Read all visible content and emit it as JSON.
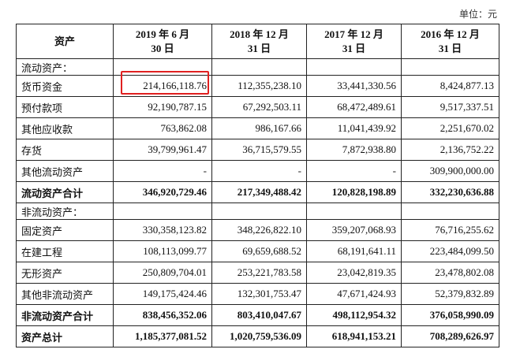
{
  "unit": "单位：元",
  "table": {
    "header": [
      "资产",
      "2019 年 6 月\n30 日",
      "2018 年 12 月\n31 日",
      "2017 年 12 月\n31 日",
      "2016 年 12 月\n31 日"
    ],
    "rows": [
      [
        "流动资产："
      ],
      [
        "货币资金",
        "214,166,118.76",
        "112,355,238.10",
        "33,441,330.56",
        "8,424,877.13"
      ],
      [
        "预付款项",
        "92,190,787.15",
        "67,292,503.11",
        "68,472,489.61",
        "9,517,337.51"
      ],
      [
        "其他应收款",
        "763,862.08",
        "986,167.66",
        "11,041,439.92",
        "2,251,670.02"
      ],
      [
        "存货",
        "39,799,961.47",
        "36,715,579.55",
        "7,872,938.80",
        "2,136,752.22"
      ],
      [
        "其他流动资产",
        "-",
        "-",
        "-",
        "309,900,000.00"
      ],
      [
        "流动资产合计",
        "346,920,729.46",
        "217,349,488.42",
        "120,828,198.89",
        "332,230,636.88"
      ],
      [
        "非流动资产："
      ],
      [
        "固定资产",
        "330,358,123.82",
        "348,226,822.10",
        "359,207,068.93",
        "76,716,255.62"
      ],
      [
        "在建工程",
        "108,113,099.77",
        "69,659,688.52",
        "68,191,641.11",
        "223,484,099.50"
      ],
      [
        "无形资产",
        "250,809,704.01",
        "253,221,783.58",
        "23,042,819.35",
        "23,478,802.08"
      ],
      [
        "其他非流动资产",
        "149,175,424.46",
        "132,301,753.47",
        "47,671,424.93",
        "52,379,832.89"
      ],
      [
        "非流动资产合计",
        "838,456,352.06",
        "803,410,047.67",
        "498,112,954.32",
        "376,058,990.09"
      ],
      [
        "资产总计",
        "1,185,377,081.52",
        "1,020,759,536.09",
        "618,941,153.21",
        "708,289,626.97"
      ]
    ]
  }
}
